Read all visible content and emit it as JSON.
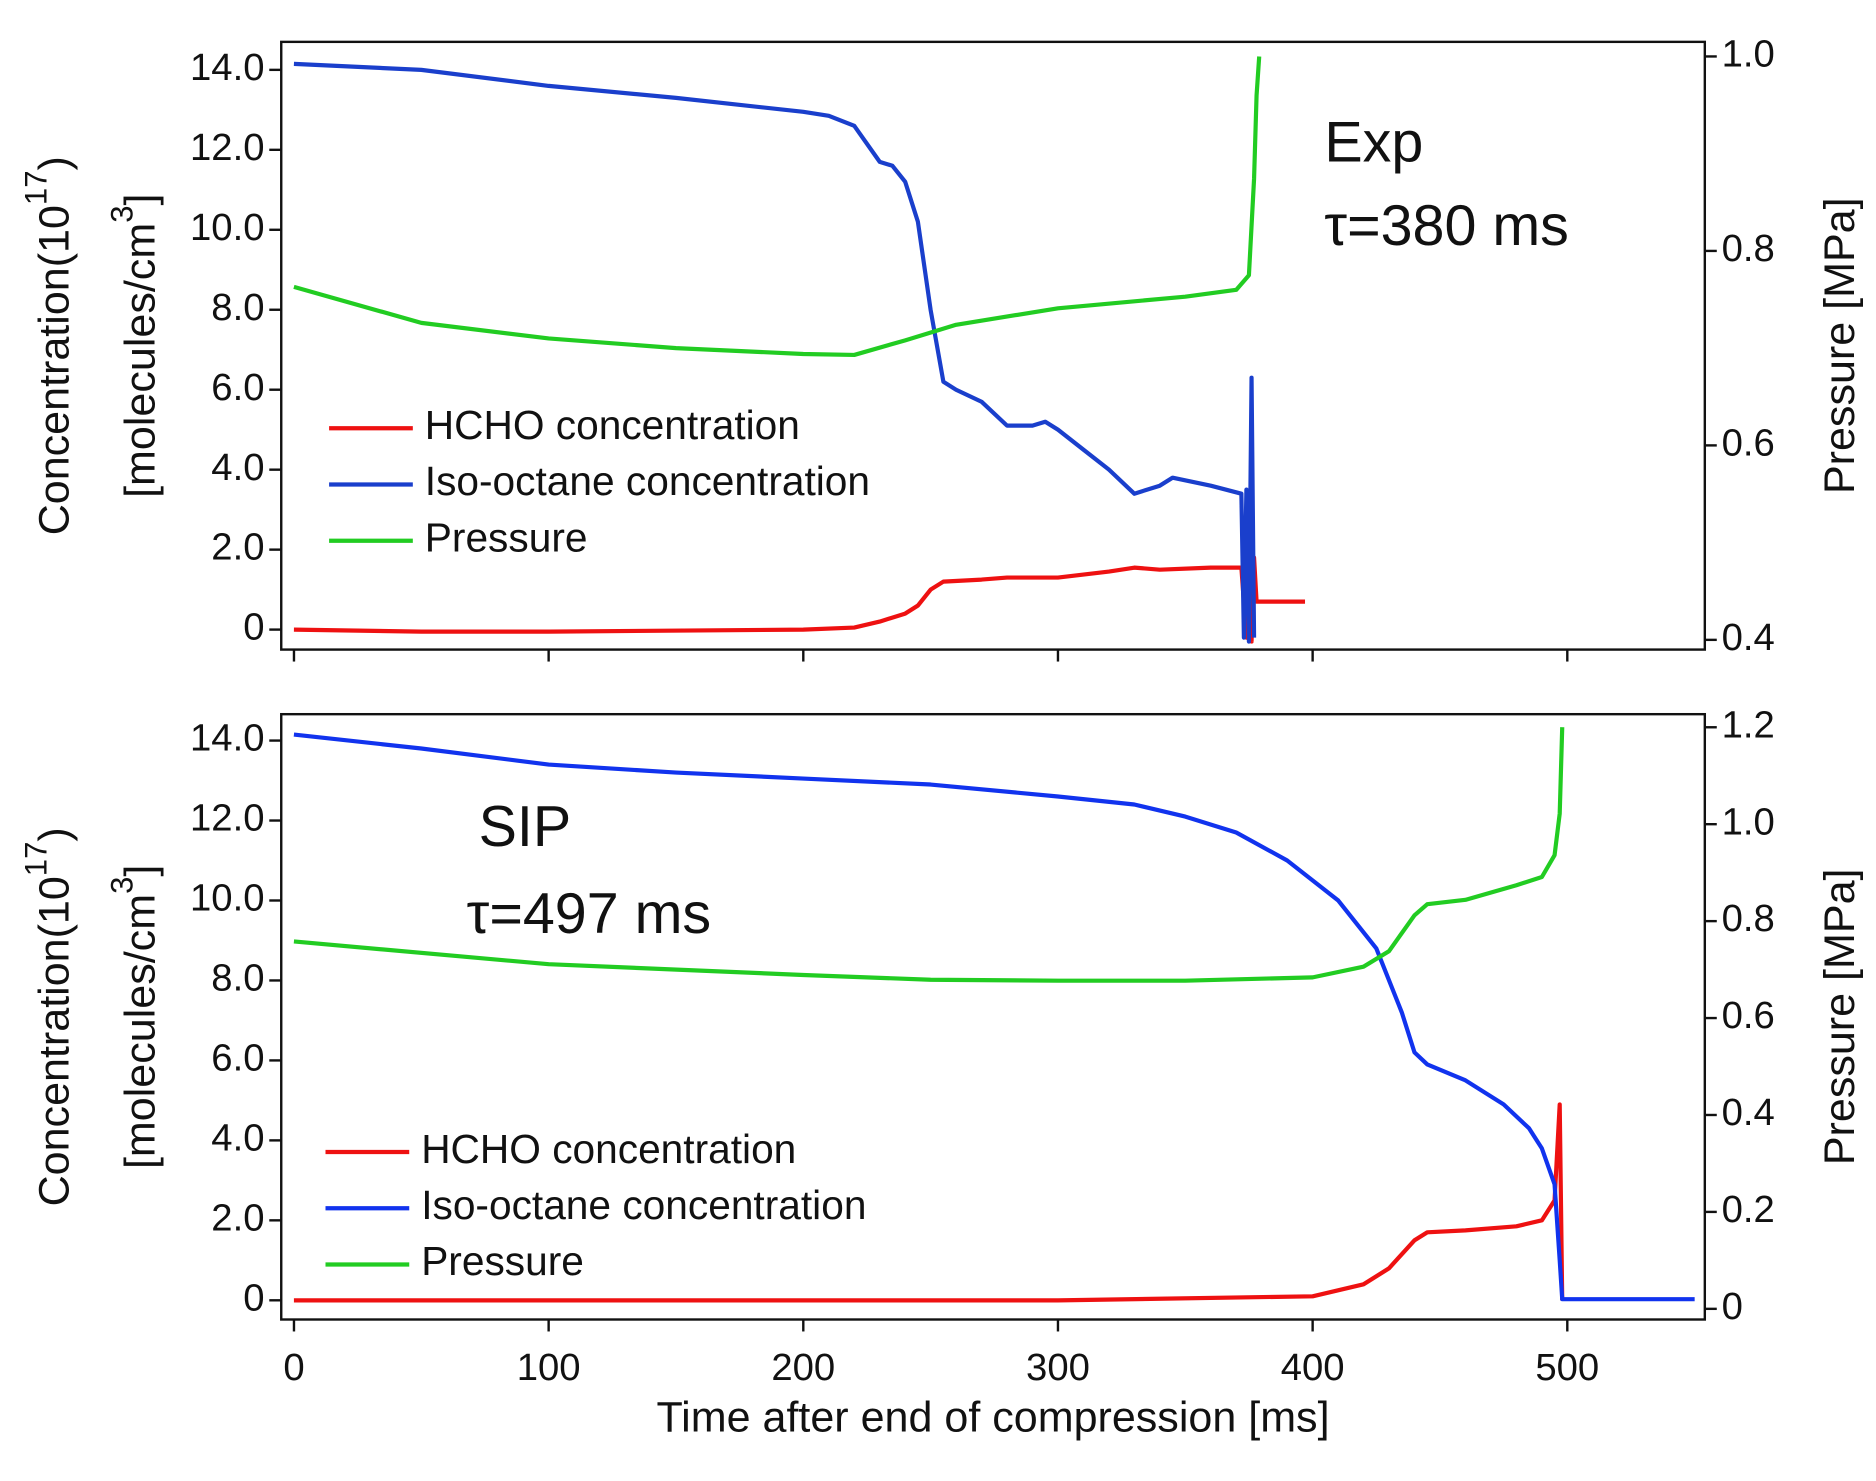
{
  "chart_data": [
    {
      "type": "line",
      "annotations": [
        "Exp",
        "τ=380 ms"
      ],
      "ylabel_lines": [
        [
          "Concentration(10",
          "17",
          ")"
        ],
        [
          "[molecules/cm",
          "3",
          "]"
        ]
      ],
      "y2label": "Pressure [MPa]",
      "xlim": [
        -5,
        554
      ],
      "xticks": [
        0,
        100,
        200,
        300,
        400,
        500
      ],
      "xtick_labels": false,
      "ylim": [
        -0.5,
        14.7
      ],
      "yticks": [
        0,
        {
          "value": 2,
          "label": "2.0"
        },
        {
          "value": 4,
          "label": "4.0"
        },
        {
          "value": 6,
          "label": "6.0"
        },
        {
          "value": 8,
          "label": "8.0"
        },
        {
          "value": 10,
          "label": "10.0"
        },
        {
          "value": 12,
          "label": "12.0"
        },
        {
          "value": 14,
          "label": "14.0"
        }
      ],
      "y2lim": [
        0.39,
        1.015
      ],
      "y2ticks": [
        {
          "value": 0.4,
          "label": "0.4"
        },
        {
          "value": 0.6,
          "label": "0.6"
        },
        {
          "value": 0.8,
          "label": "0.8"
        },
        {
          "value": 1.0,
          "label": "1.0"
        }
      ],
      "series": [
        {
          "name": "HCHO concentration",
          "color": "#ee1111",
          "x": [
            0,
            50,
            100,
            200,
            220,
            230,
            240,
            245,
            250,
            255,
            270,
            280,
            300,
            320,
            330,
            340,
            360,
            372,
            374,
            375,
            376,
            377,
            378,
            397
          ],
          "values": [
            0,
            -0.05,
            -0.05,
            0,
            0.05,
            0.2,
            0.4,
            0.6,
            1.0,
            1.2,
            1.25,
            1.3,
            1.3,
            1.45,
            1.55,
            1.5,
            1.55,
            1.55,
            -0.2,
            1.6,
            -0.3,
            1.8,
            0.7,
            0.7
          ]
        },
        {
          "name": "Iso-octane concentration",
          "color": "#1a3fcc",
          "x": [
            0,
            50,
            100,
            150,
            200,
            210,
            220,
            230,
            235,
            240,
            245,
            250,
            255,
            260,
            270,
            280,
            290,
            295,
            300,
            310,
            320,
            330,
            340,
            345,
            360,
            372,
            373,
            374,
            375,
            376,
            377
          ],
          "values": [
            14.15,
            14.0,
            13.6,
            13.3,
            12.95,
            12.85,
            12.6,
            11.7,
            11.6,
            11.2,
            10.2,
            8.0,
            6.2,
            6.0,
            5.7,
            5.1,
            5.1,
            5.2,
            5.0,
            4.5,
            4.0,
            3.4,
            3.6,
            3.8,
            3.6,
            3.4,
            -0.2,
            3.5,
            -0.3,
            6.3,
            -0.2
          ]
        },
        {
          "name": "Pressure",
          "color": "#22cc22",
          "axis": "y2",
          "x": [
            0,
            50,
            100,
            150,
            200,
            220,
            240,
            260,
            300,
            350,
            370,
            375,
            377,
            378,
            379
          ],
          "values": [
            0.763,
            0.726,
            0.71,
            0.7,
            0.694,
            0.693,
            0.708,
            0.724,
            0.741,
            0.753,
            0.76,
            0.775,
            0.874,
            0.96,
            1.0
          ]
        }
      ]
    },
    {
      "type": "line",
      "annotations": [
        "SIP",
        "τ=497 ms"
      ],
      "ylabel_lines": [
        [
          "Concentration(10",
          "17",
          ")"
        ],
        [
          "[molecules/cm",
          "3",
          "]"
        ]
      ],
      "y2label": "Pressure [MPa]",
      "xlabel": "Time after end of compression [ms]",
      "xlim": [
        -5,
        554
      ],
      "xticks": [
        0,
        100,
        200,
        300,
        400,
        500
      ],
      "xtick_labels": true,
      "ylim": [
        -0.48,
        14.66
      ],
      "yticks": [
        0,
        {
          "value": 2,
          "label": "2.0"
        },
        {
          "value": 4,
          "label": "4.0"
        },
        {
          "value": 6,
          "label": "6.0"
        },
        {
          "value": 8,
          "label": "8.0"
        },
        {
          "value": 10,
          "label": "10.0"
        },
        {
          "value": 12,
          "label": "12.0"
        },
        {
          "value": 14,
          "label": "14.0"
        }
      ],
      "y2lim": [
        -0.022,
        1.227
      ],
      "y2ticks": [
        0,
        {
          "value": 0.2,
          "label": "0.2"
        },
        {
          "value": 0.4,
          "label": "0.4"
        },
        {
          "value": 0.6,
          "label": "0.6"
        },
        {
          "value": 0.8,
          "label": "0.8"
        },
        {
          "value": 1.0,
          "label": "1.0"
        },
        {
          "value": 1.2,
          "label": "1.2"
        }
      ],
      "series": [
        {
          "name": "HCHO concentration",
          "color": "#ee1111",
          "x": [
            0,
            300,
            400,
            420,
            430,
            440,
            445,
            460,
            480,
            490,
            495,
            497,
            498
          ],
          "values": [
            0,
            0,
            0.1,
            0.4,
            0.8,
            1.5,
            1.7,
            1.75,
            1.85,
            2.0,
            2.5,
            4.9,
            0
          ]
        },
        {
          "name": "Iso-octane concentration",
          "color": "#1133ee",
          "x": [
            0,
            50,
            100,
            150,
            200,
            250,
            300,
            330,
            350,
            370,
            390,
            410,
            425,
            435,
            440,
            445,
            460,
            475,
            485,
            490,
            495,
            497,
            498,
            550
          ],
          "values": [
            14.15,
            13.8,
            13.4,
            13.2,
            13.05,
            12.9,
            12.6,
            12.4,
            12.1,
            11.7,
            11.0,
            10.0,
            8.8,
            7.2,
            6.2,
            5.9,
            5.5,
            4.9,
            4.3,
            3.8,
            2.9,
            1.0,
            0.03,
            0.03
          ]
        },
        {
          "name": "Pressure",
          "color": "#22cc22",
          "axis": "y2",
          "x": [
            0,
            100,
            200,
            250,
            300,
            350,
            400,
            420,
            430,
            440,
            445,
            460,
            480,
            490,
            495,
            497,
            498
          ],
          "values": [
            0.758,
            0.711,
            0.689,
            0.679,
            0.677,
            0.677,
            0.684,
            0.706,
            0.738,
            0.812,
            0.835,
            0.844,
            0.874,
            0.891,
            0.936,
            1.022,
            1.2
          ]
        }
      ]
    }
  ]
}
